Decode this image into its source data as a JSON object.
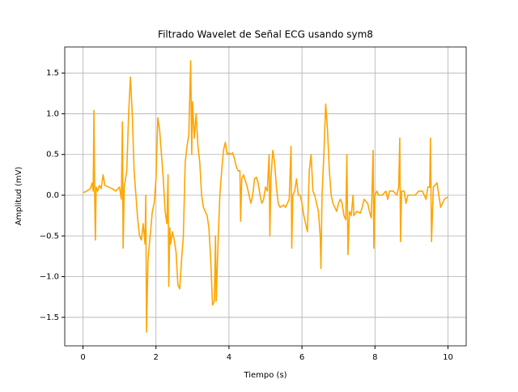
{
  "chart_data": {
    "type": "line",
    "title": "Filtrado Wavelet de Señal ECG usando sym8",
    "xlabel": "Tiempo (s)",
    "ylabel": "Amplitud (mV)",
    "xlim": [
      -0.5,
      10.5
    ],
    "ylim": [
      -1.85,
      1.82
    ],
    "xticks": [
      0,
      2,
      4,
      6,
      8,
      10
    ],
    "yticks": [
      {
        "value": -1.5,
        "label": "−1.5"
      },
      {
        "value": -1.0,
        "label": "−1.0"
      },
      {
        "value": -0.5,
        "label": "−0.5"
      },
      {
        "value": 0,
        "label": "0.0"
      },
      0.5,
      {
        "value": 1.0,
        "label": "1.0"
      },
      1.5
    ],
    "grid": true,
    "x": [
      0,
      0.1,
      0.2,
      0.25,
      0.28,
      0.3,
      0.32,
      0.34,
      0.36,
      0.4,
      0.45,
      0.5,
      0.55,
      0.6,
      0.7,
      0.8,
      0.9,
      1.0,
      1.05,
      1.08,
      1.1,
      1.13,
      1.2,
      1.25,
      1.3,
      1.35,
      1.4,
      1.45,
      1.5,
      1.55,
      1.6,
      1.65,
      1.7,
      1.72,
      1.74,
      1.78,
      1.82,
      1.86,
      1.9,
      1.95,
      2.0,
      2.05,
      2.1,
      2.15,
      2.2,
      2.25,
      2.3,
      2.33,
      2.35,
      2.38,
      2.4,
      2.45,
      2.5,
      2.55,
      2.6,
      2.65,
      2.7,
      2.75,
      2.8,
      2.85,
      2.9,
      2.95,
      2.98,
      3.0,
      3.05,
      3.1,
      3.15,
      3.2,
      3.25,
      3.3,
      3.35,
      3.4,
      3.45,
      3.5,
      3.55,
      3.6,
      3.63,
      3.65,
      3.7,
      3.75,
      3.8,
      3.85,
      3.9,
      3.95,
      4.0,
      4.05,
      4.1,
      4.15,
      4.2,
      4.25,
      4.3,
      4.32,
      4.35,
      4.4,
      4.5,
      4.55,
      4.6,
      4.65,
      4.7,
      4.75,
      4.8,
      4.85,
      4.9,
      4.95,
      5.0,
      5.05,
      5.1,
      5.12,
      5.15,
      5.2,
      5.25,
      5.3,
      5.35,
      5.4,
      5.5,
      5.55,
      5.6,
      5.65,
      5.7,
      5.72,
      5.75,
      5.8,
      5.85,
      5.9,
      5.95,
      6.0,
      6.05,
      6.1,
      6.15,
      6.2,
      6.25,
      6.3,
      6.35,
      6.4,
      6.45,
      6.5,
      6.52,
      6.55,
      6.6,
      6.65,
      6.7,
      6.75,
      6.8,
      6.85,
      6.9,
      6.95,
      7.0,
      7.05,
      7.1,
      7.15,
      7.2,
      7.23,
      7.26,
      7.3,
      7.35,
      7.4,
      7.42,
      7.5,
      7.6,
      7.65,
      7.7,
      7.8,
      7.85,
      7.9,
      7.95,
      7.97,
      8.0,
      8.05,
      8.1,
      8.2,
      8.3,
      8.35,
      8.4,
      8.5,
      8.6,
      8.65,
      8.68,
      8.7,
      8.73,
      8.8,
      8.85,
      8.9,
      9.0,
      9.1,
      9.2,
      9.3,
      9.4,
      9.45,
      9.5,
      9.52,
      9.55,
      9.6,
      9.7,
      9.75,
      9.8,
      9.85,
      9.9,
      10.0
    ],
    "series": [
      {
        "color": "#ffa500",
        "values": [
          0.03,
          0.05,
          0.08,
          0.15,
          0.05,
          1.04,
          0.0,
          -0.55,
          0.1,
          0.05,
          0.12,
          0.08,
          0.25,
          0.12,
          0.1,
          0.08,
          0.05,
          0.1,
          -0.05,
          0.9,
          -0.65,
          0.1,
          0.3,
          1.0,
          1.45,
          1.0,
          0.3,
          0.0,
          -0.3,
          -0.5,
          -0.55,
          -0.35,
          -0.6,
          0.0,
          -1.68,
          -0.8,
          -0.6,
          -0.4,
          -0.2,
          -0.1,
          0.2,
          0.95,
          0.8,
          0.5,
          0.2,
          -0.2,
          -0.35,
          0.25,
          -1.12,
          -0.4,
          -0.6,
          -0.45,
          -0.55,
          -0.7,
          -1.1,
          -1.15,
          -0.8,
          -0.5,
          0.4,
          0.6,
          0.75,
          1.65,
          0.5,
          1.15,
          0.7,
          1.0,
          0.6,
          0.4,
          0.0,
          -0.15,
          -0.2,
          -0.25,
          -0.4,
          -0.8,
          -1.35,
          -1.3,
          -0.5,
          -1.3,
          -0.6,
          0.0,
          0.3,
          0.55,
          0.65,
          0.5,
          0.52,
          0.5,
          0.52,
          0.45,
          0.35,
          0.3,
          0.3,
          -0.32,
          0.2,
          0.25,
          0.1,
          0.0,
          -0.1,
          0.0,
          0.2,
          0.22,
          0.15,
          0.0,
          -0.1,
          -0.05,
          0.1,
          0.05,
          0.5,
          -0.5,
          0.2,
          0.55,
          0.4,
          0.1,
          -0.1,
          -0.15,
          -0.12,
          -0.15,
          -0.1,
          -0.05,
          0.6,
          -0.65,
          0.0,
          0.05,
          0.2,
          0.0,
          0.0,
          -0.1,
          -0.25,
          -0.35,
          -0.45,
          0.3,
          0.5,
          0.05,
          0.0,
          -0.1,
          -0.2,
          -0.5,
          -0.9,
          0.0,
          0.5,
          1.12,
          0.8,
          0.3,
          0.0,
          -0.1,
          -0.15,
          -0.2,
          -0.1,
          -0.05,
          -0.1,
          -0.25,
          -0.3,
          0.5,
          -0.73,
          -0.2,
          -0.25,
          0.0,
          -0.25,
          -0.2,
          -0.22,
          -0.15,
          -0.05,
          -0.1,
          -0.2,
          -0.28,
          0.55,
          -0.65,
          0.0,
          0.05,
          0.0,
          0.0,
          0.05,
          -0.05,
          0.05,
          0.05,
          0.0,
          0.1,
          0.7,
          -0.57,
          0.05,
          0.05,
          -0.1,
          0.0,
          0.0,
          0.0,
          0.05,
          0.05,
          -0.05,
          0.1,
          0.1,
          0.7,
          -0.57,
          0.1,
          0.15,
          0.0,
          -0.15,
          -0.1,
          -0.05,
          -0.02
        ]
      }
    ]
  }
}
